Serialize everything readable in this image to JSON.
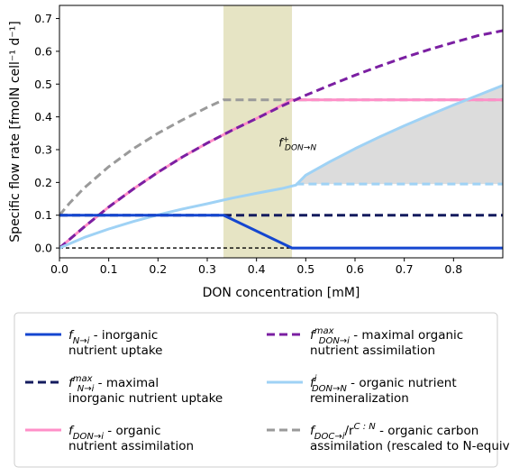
{
  "chart_data": {
    "type": "line",
    "xlabel": "DON concentration [mM]",
    "ylabel": "Specific flow rate [fmolN cell⁻¹ d⁻¹]",
    "xlim": [
      0,
      0.9
    ],
    "ylim": [
      -0.03,
      0.74
    ],
    "xticks": [
      0.0,
      0.1,
      0.2,
      0.3,
      0.4,
      0.5,
      0.6,
      0.7,
      0.8
    ],
    "xtick_labels": [
      "0.0",
      "0.1",
      "0.2",
      "0.3",
      "0.4",
      "0.5",
      "0.6",
      "0.7",
      "0.8"
    ],
    "yticks": [
      0.0,
      0.1,
      0.2,
      0.3,
      0.4,
      0.5,
      0.6,
      0.7
    ],
    "ytick_labels": [
      "0.0",
      "0.1",
      "0.2",
      "0.3",
      "0.4",
      "0.5",
      "0.6",
      "0.7"
    ],
    "grid": false,
    "legend_position": "below plot",
    "shaded_region": {
      "x": [
        0.333,
        0.472
      ],
      "color": "#e6e4c4"
    },
    "fill_region": {
      "x": [
        0.48,
        0.9
      ],
      "lower": 0.195,
      "color": "#dcdcdc"
    },
    "annotation": {
      "text": "f",
      "sup": "+",
      "sub": "DON→N",
      "x": 0.445,
      "y": 0.31
    },
    "zero_reference": {
      "x": [
        0,
        0.9
      ],
      "y": [
        0,
        0
      ],
      "color": "#000000"
    },
    "series": [
      {
        "key": "doc",
        "style": "dashed",
        "color": "#9a9a9a",
        "x": [
          0,
          0.02,
          0.05,
          0.1,
          0.15,
          0.2,
          0.25,
          0.3,
          0.333,
          0.4,
          0.5,
          0.6,
          0.7,
          0.8,
          0.9
        ],
        "y": [
          0.1,
          0.136,
          0.183,
          0.248,
          0.303,
          0.35,
          0.391,
          0.429,
          0.452,
          0.452,
          0.452,
          0.452,
          0.452,
          0.452,
          0.452
        ]
      },
      {
        "key": "don_i",
        "style": "solid",
        "color": "#ff8fc8",
        "x": [
          0,
          0.05,
          0.1,
          0.15,
          0.2,
          0.25,
          0.3,
          0.35,
          0.4,
          0.472,
          0.5,
          0.6,
          0.7,
          0.8,
          0.9
        ],
        "y": [
          0,
          0.064,
          0.125,
          0.18,
          0.231,
          0.278,
          0.32,
          0.359,
          0.395,
          0.452,
          0.452,
          0.452,
          0.452,
          0.452,
          0.452
        ]
      },
      {
        "key": "don_i_max",
        "style": "dashed",
        "color": "#7b1fa2",
        "x": [
          0,
          0.05,
          0.1,
          0.15,
          0.2,
          0.25,
          0.3,
          0.35,
          0.4,
          0.45,
          0.5,
          0.55,
          0.6,
          0.65,
          0.7,
          0.75,
          0.8,
          0.85,
          0.9
        ],
        "y": [
          0,
          0.064,
          0.125,
          0.18,
          0.231,
          0.278,
          0.32,
          0.359,
          0.395,
          0.432,
          0.466,
          0.497,
          0.527,
          0.555,
          0.581,
          0.605,
          0.627,
          0.648,
          0.663
        ]
      },
      {
        "key": "remin",
        "style": "solid",
        "color": "#9fd2f5",
        "x": [
          0,
          0.05,
          0.1,
          0.15,
          0.2,
          0.25,
          0.3,
          0.35,
          0.4,
          0.45,
          0.48,
          0.5,
          0.55,
          0.6,
          0.65,
          0.7,
          0.75,
          0.8,
          0.85,
          0.9
        ],
        "y": [
          0,
          0.032,
          0.058,
          0.081,
          0.101,
          0.119,
          0.135,
          0.152,
          0.167,
          0.181,
          0.192,
          0.222,
          0.264,
          0.303,
          0.339,
          0.373,
          0.405,
          0.436,
          0.466,
          0.496
        ]
      },
      {
        "key": "remin_level",
        "style": "dashed",
        "color": "#9fd2f5",
        "x": [
          0.48,
          0.9
        ],
        "y": [
          0.195,
          0.195
        ]
      },
      {
        "key": "n_i_max",
        "style": "dashed",
        "color": "#131b5e",
        "x": [
          0,
          0.9
        ],
        "y": [
          0.1,
          0.1
        ]
      },
      {
        "key": "n_i",
        "style": "solid",
        "color": "#1446d0",
        "x": [
          0,
          0.333,
          0.472,
          0.9
        ],
        "y": [
          0.1,
          0.1,
          0.0,
          0.0
        ]
      }
    ],
    "legend": [
      {
        "key": "n_i",
        "style": "solid",
        "color": "#1446d0",
        "symbol": "f",
        "sub": "N→i",
        "sup": "",
        "text1": " - inorganic",
        "text2": "nutrient uptake"
      },
      {
        "key": "n_i_max",
        "style": "dashed",
        "color": "#131b5e",
        "symbol": "f",
        "sub": "N→i",
        "sup": "max",
        "text1": " - maximal",
        "text2": "inorganic nutrient uptake"
      },
      {
        "key": "don_i",
        "style": "solid",
        "color": "#ff8fc8",
        "symbol": "f",
        "sub": "DON→i",
        "sup": "",
        "text1": " - organic",
        "text2": "nutrient assimilation"
      },
      {
        "key": "don_i_max",
        "style": "dashed",
        "color": "#7b1fa2",
        "symbol": "f",
        "sub": "DON→i",
        "sup": "max",
        "text1": " - maximal organic",
        "text2": "nutrient assimilation"
      },
      {
        "key": "remin",
        "style": "solid",
        "color": "#9fd2f5",
        "symbol": "f",
        "sub": "DON→N",
        "sup": "i",
        "text1": " - organic nutrient",
        "text2": "remineralization"
      },
      {
        "key": "doc",
        "style": "dashed",
        "color": "#9a9a9a",
        "symbol": "f",
        "sub": "DOC→i",
        "sup": "",
        "text1": "/r",
        "text1_sup": "C : N",
        "text1_after": " - organic carbon",
        "text2": "assimilation (rescaled to N-equiv.)"
      }
    ]
  }
}
